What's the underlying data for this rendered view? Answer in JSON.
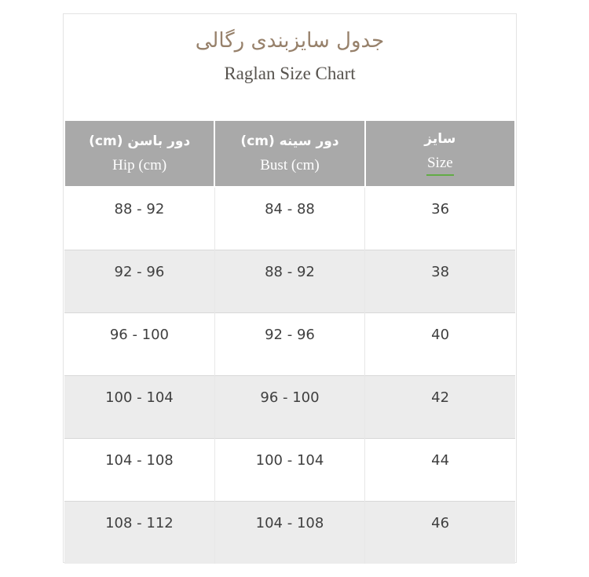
{
  "page": {
    "title_fa": "جدول سایزبندی رگالی",
    "title_en": "Raglan Size Chart"
  },
  "chart_data": {
    "type": "table",
    "title": "جدول سایزبندی رگالی",
    "subtitle": "Raglan Size Chart",
    "columns": [
      {
        "fa": "دور باسن (cm)",
        "en": "Hip (cm)"
      },
      {
        "fa": "دور سینه (cm)",
        "en": "Bust (cm)"
      },
      {
        "fa": "سایز",
        "en": "Size"
      }
    ],
    "rows": [
      [
        "88 - 92",
        "84 - 88",
        "36"
      ],
      [
        "92 - 96",
        "88 - 92",
        "38"
      ],
      [
        "96 - 100",
        "92 - 96",
        "40"
      ],
      [
        "100 - 104",
        "96 - 100",
        "42"
      ],
      [
        "104 - 108",
        "100 - 104",
        "44"
      ],
      [
        "108 - 112",
        "104 - 108",
        "46"
      ]
    ],
    "layout": {
      "direction": "rtl",
      "alternating_rows": true
    }
  },
  "colors": {
    "header_background": "#a9a9a9",
    "header_text": "#ffffff",
    "row_alt_background": "#ececec",
    "cell_text": "#3f3f3f",
    "title_fa_color": "#97816b",
    "title_en_color": "#57534e",
    "size_underline_green": "#62ab46",
    "border_light": "#e3e3e3",
    "row_divider": "#d8d8d8"
  }
}
